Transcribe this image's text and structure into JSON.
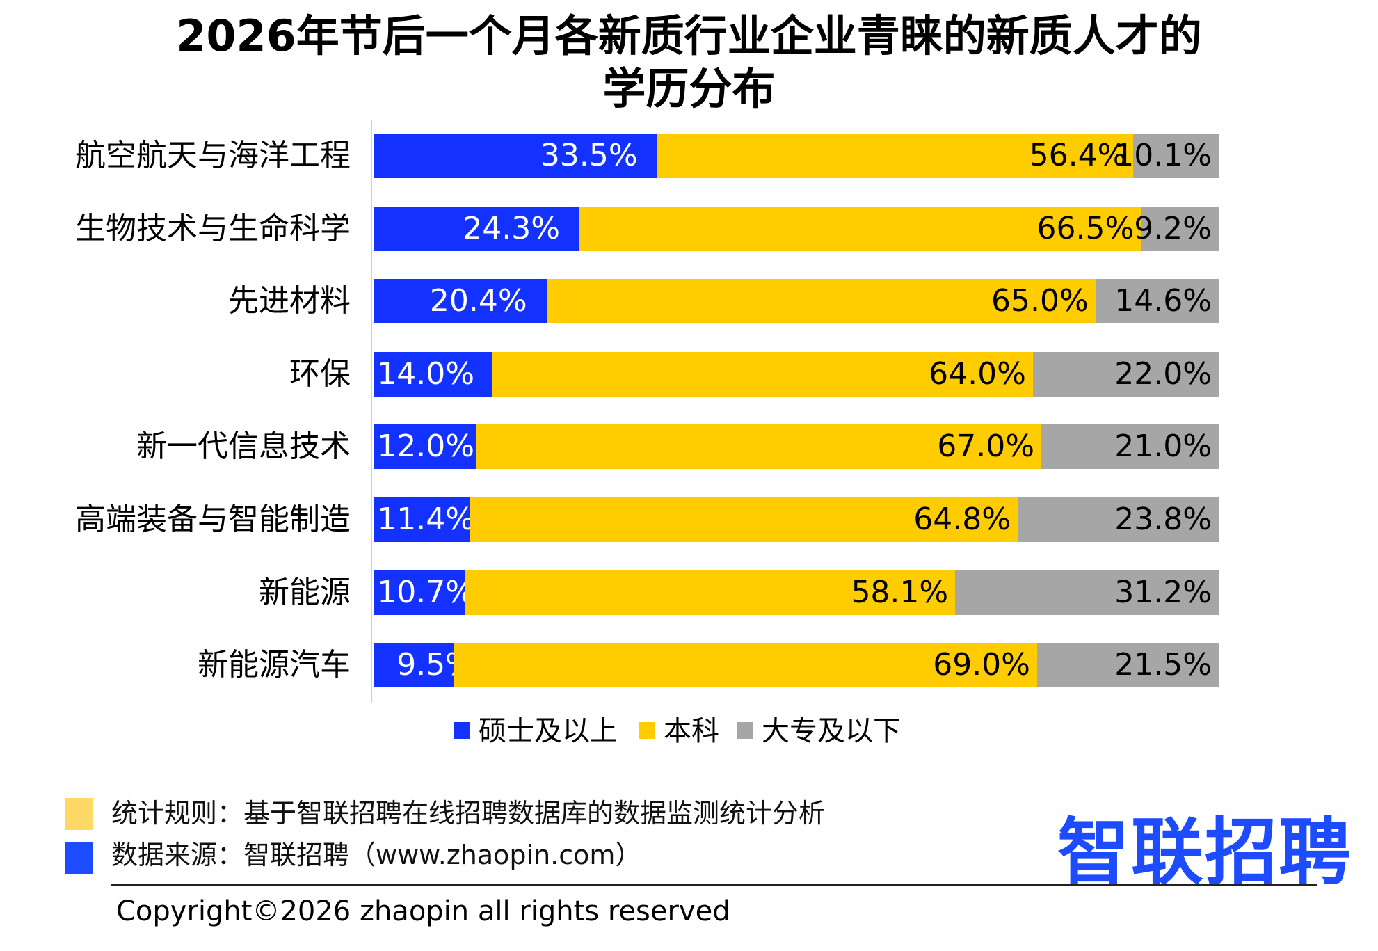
{
  "chart_data": {
    "type": "bar",
    "orientation": "horizontal",
    "stacked": true,
    "title": "2026年节后一个月各新质行业企业青睐的新质人才的学历分布",
    "title_lines": [
      "2026年节后一个月各新质行业企业青睐的新质人才的",
      "学历分布"
    ],
    "categories": [
      "航空航天与海洋工程",
      "生物技术与生命科学",
      "先进材料",
      "环保",
      "新一代信息技术",
      "高端装备与智能制造",
      "新能源",
      "新能源汽车"
    ],
    "series": [
      {
        "name": "硕士及以上",
        "color": "#1432ff",
        "label_color": "#ffffff",
        "values": [
          33.5,
          24.3,
          20.4,
          14.0,
          12.0,
          11.4,
          10.7,
          9.5
        ],
        "labels": [
          "33.5%",
          "24.3%",
          "20.4%",
          "14.0%",
          "12.0%",
          "11.4%",
          "10.7%",
          "9.5%"
        ]
      },
      {
        "name": "本科",
        "color": "#ffcc00",
        "label_color": "#000000",
        "values": [
          56.4,
          66.5,
          65.0,
          64.0,
          67.0,
          64.8,
          58.1,
          69.0
        ],
        "labels": [
          "56.4%",
          "66.5%",
          "65.0%",
          "64.0%",
          "67.0%",
          "64.8%",
          "58.1%",
          "69.0%"
        ]
      },
      {
        "name": "大专及以下",
        "color": "#a6a6a6",
        "label_color": "#000000",
        "values": [
          10.1,
          9.2,
          14.6,
          22.0,
          21.0,
          23.8,
          31.2,
          21.5
        ],
        "labels": [
          "10.1%",
          "9.2%",
          "14.6%",
          "22.0%",
          "21.0%",
          "23.8%",
          "31.2%",
          "21.5%"
        ]
      }
    ],
    "xlim": [
      0,
      100
    ],
    "grid": false,
    "legend_position": "bottom"
  },
  "notes": [
    {
      "text": "统计规则：基于智联招聘在线招聘数据库的数据监测统计分析",
      "color": "#ffd966"
    },
    {
      "text": "数据来源：智联招聘（www.zhaopin.com）",
      "color": "#1d4bff"
    }
  ],
  "logo": "智联招聘",
  "copyright": "Copyright©2026 zhaopin all rights reserved"
}
